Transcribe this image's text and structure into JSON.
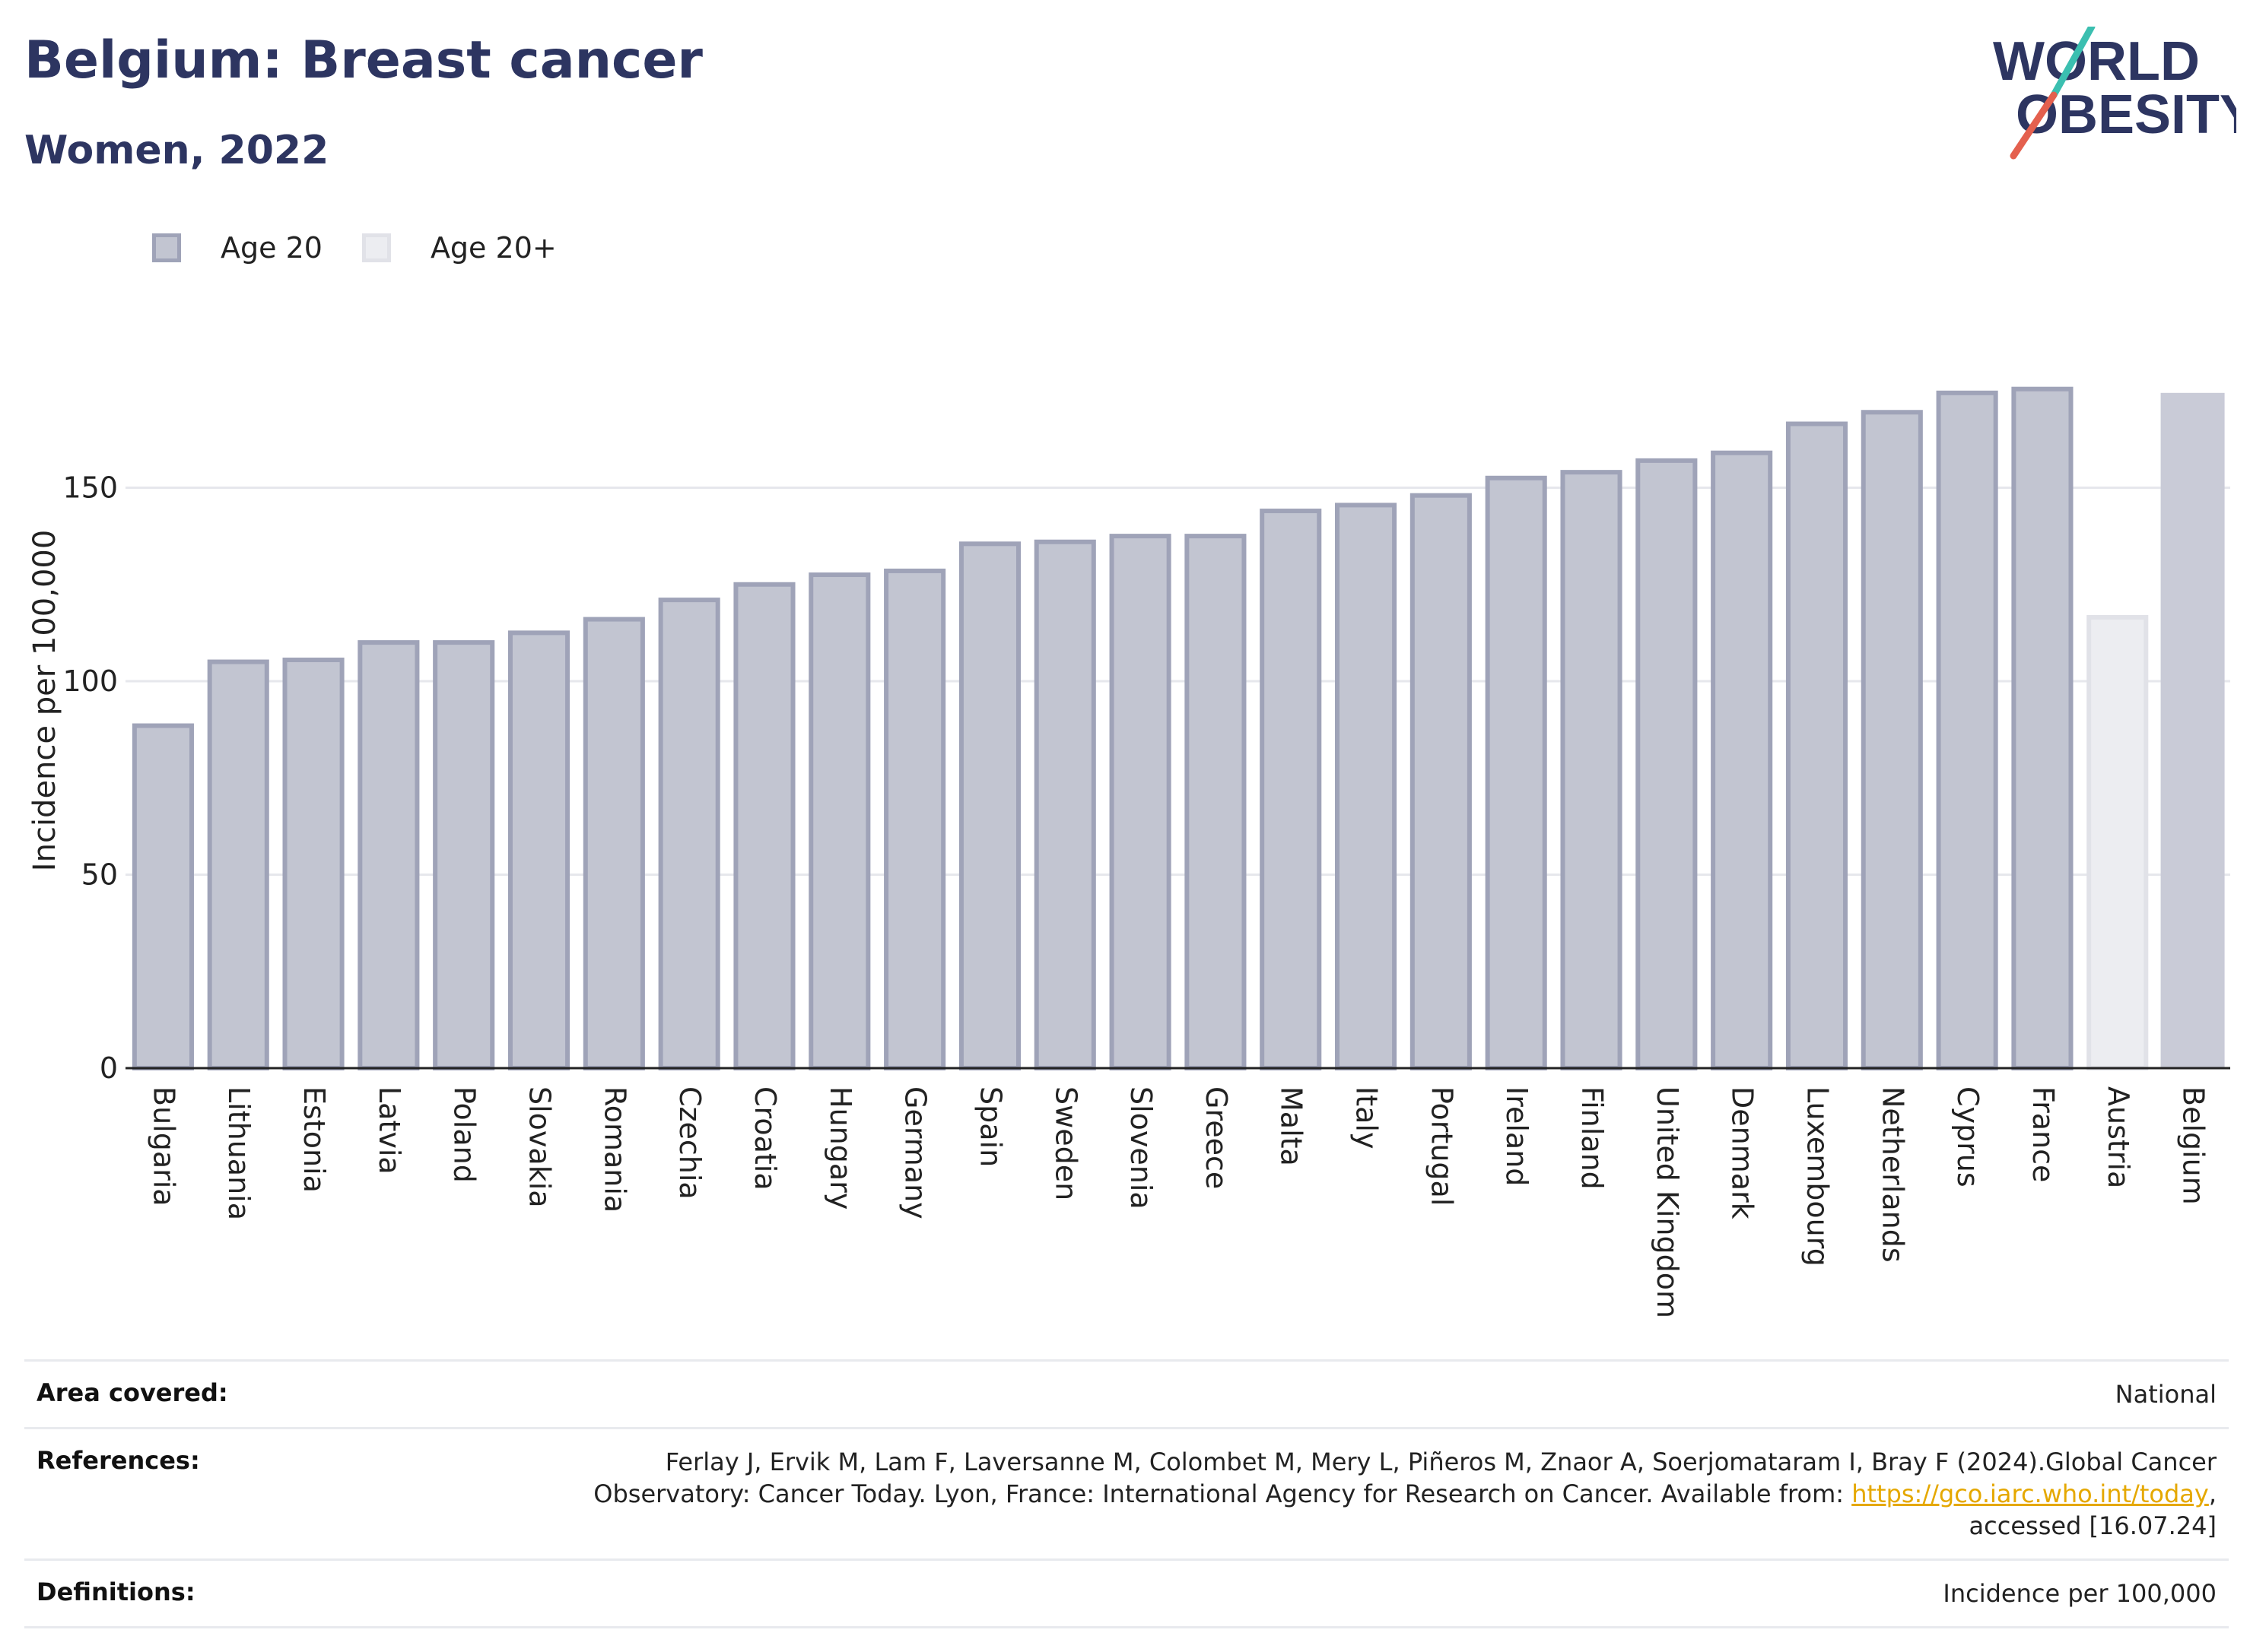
{
  "header": {
    "title": "Belgium: Breast cancer",
    "subtitle": "Women, 2022"
  },
  "logo": {
    "line1": "WORLD",
    "line2": "OBESITY"
  },
  "legend": {
    "items": [
      "Age 20",
      "Age 20+"
    ]
  },
  "colors": {
    "title": "#2d3561",
    "bar_fill": "#c2c5d1",
    "bar_stroke": "#9fa3b8",
    "bar_light_fill": "#ecedf1",
    "bar_light_stroke": "#e1e2e8",
    "highlight_fill": "#c9cbd7",
    "link": "#e5a800",
    "logo_teal": "#3bbfb0",
    "logo_red": "#e4604e"
  },
  "chart_data": {
    "type": "bar",
    "ylabel": "Incidence per 100,000",
    "ylim": [
      0,
      190
    ],
    "yticks": [
      0,
      50,
      100,
      150
    ],
    "grid": true,
    "legend_position": "top-left",
    "categories": [
      "Bulgaria",
      "Lithuania",
      "Estonia",
      "Latvia",
      "Poland",
      "Slovakia",
      "Romania",
      "Czechia",
      "Croatia",
      "Hungary",
      "Germany",
      "Spain",
      "Sweden",
      "Slovenia",
      "Greece",
      "Malta",
      "Italy",
      "Portugal",
      "Ireland",
      "Finland",
      "United Kingdom",
      "Denmark",
      "Luxembourg",
      "Netherlands",
      "Cyprus",
      "France",
      "Austria",
      "Belgium"
    ],
    "values": [
      88.5,
      105,
      105.5,
      110,
      110,
      112.5,
      116,
      121,
      125,
      127.5,
      128.5,
      135.5,
      136,
      137.5,
      137.5,
      144,
      145.5,
      148,
      152.5,
      154,
      157,
      159,
      166.5,
      169.5,
      174.5,
      175.5,
      116.5,
      174.5
    ],
    "groups": [
      "Age 20",
      "Age 20",
      "Age 20",
      "Age 20",
      "Age 20",
      "Age 20",
      "Age 20",
      "Age 20",
      "Age 20",
      "Age 20",
      "Age 20",
      "Age 20",
      "Age 20",
      "Age 20",
      "Age 20",
      "Age 20",
      "Age 20",
      "Age 20",
      "Age 20",
      "Age 20",
      "Age 20",
      "Age 20",
      "Age 20",
      "Age 20",
      "Age 20",
      "Age 20",
      "Age 20+",
      "Age 20"
    ],
    "highlight": "Belgium"
  },
  "info": {
    "area_label": "Area covered:",
    "area_value": "National",
    "refs_label": "References:",
    "refs_line1": "Ferlay J, Ervik M, Lam F, Laversanne M, Colombet M, Mery L, Piñeros M, Znaor A, Soerjomataram I, Bray F (2024).Global Cancer",
    "refs_line2_pre": "Observatory: Cancer Today. Lyon, France: International Agency for Research on Cancer. Available from: ",
    "refs_link": "https://gco.iarc.who.int/today",
    "refs_line2_post": ",",
    "refs_line3": "accessed [16.07.24]",
    "defs_label": "Definitions:",
    "defs_value": "Incidence per 100,000"
  }
}
